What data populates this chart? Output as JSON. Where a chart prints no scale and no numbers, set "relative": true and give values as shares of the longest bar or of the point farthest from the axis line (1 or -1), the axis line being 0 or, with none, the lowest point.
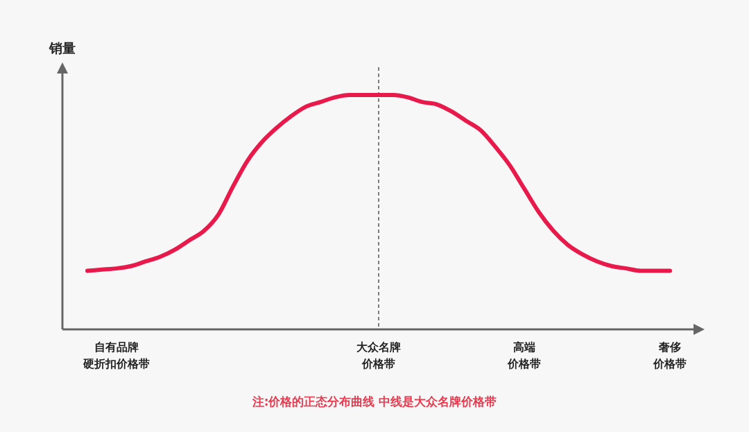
{
  "chart_data": {
    "type": "line",
    "relative": true,
    "ylabel": "销量",
    "categories": [
      null,
      null,
      "自有品牌硬折扣价格带",
      null,
      null,
      null,
      null,
      null,
      null,
      null,
      null,
      null,
      null,
      null,
      null,
      null,
      null,
      null,
      null,
      null,
      "大众名牌价格带",
      null,
      null,
      null,
      null,
      null,
      null,
      null,
      null,
      null,
      "高端价格带",
      null,
      null,
      null,
      null,
      null,
      null,
      null,
      null,
      null,
      "奢侈价格带"
    ],
    "series": [
      {
        "color": "#e8194b",
        "values": [
          0.25,
          0.255,
          0.26,
          0.27,
          0.29,
          0.31,
          0.34,
          0.38,
          0.42,
          0.49,
          0.61,
          0.72,
          0.8,
          0.86,
          0.91,
          0.95,
          0.97,
          0.99,
          1,
          1,
          1,
          1,
          0.99,
          0.97,
          0.96,
          0.93,
          0.89,
          0.85,
          0.78,
          0.7,
          0.6,
          0.5,
          0.42,
          0.36,
          0.32,
          0.29,
          0.27,
          0.26,
          0.25,
          0.25,
          0.25
        ]
      }
    ],
    "ref_lines": [
      {
        "axis": "x",
        "value": "大众名牌价格带",
        "color": "#555555",
        "line_style": "dashed"
      }
    ],
    "annotations": [
      "注:价格的正态分布曲线 中线是大众名牌价格带"
    ],
    "marker": "none"
  }
}
